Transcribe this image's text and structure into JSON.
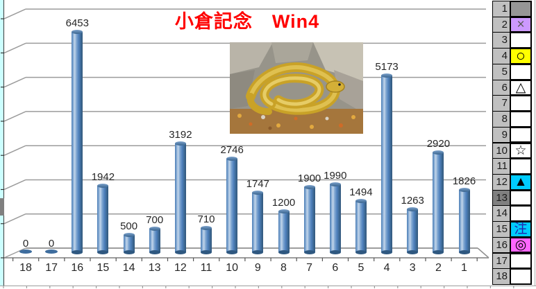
{
  "title": {
    "text": "小倉記念　Win4",
    "color": "#FF0000"
  },
  "chart_data": {
    "type": "bar",
    "subtype": "3d-cylinder",
    "title": "小倉記念　Win4",
    "categories": [
      "18",
      "17",
      "16",
      "15",
      "14",
      "13",
      "12",
      "11",
      "10",
      "9",
      "8",
      "7",
      "6",
      "5",
      "4",
      "3",
      "2",
      "1"
    ],
    "values": [
      0,
      0,
      6453,
      1942,
      500,
      700,
      3192,
      710,
      2746,
      1747,
      1200,
      1900,
      1990,
      1494,
      5173,
      1263,
      2920,
      1826
    ],
    "xlabel": "",
    "ylabel": "",
    "ylim": [
      0,
      7000
    ],
    "gridline_interval": 1000,
    "grid": true,
    "y_tick_labels_visible": false,
    "data_labels": true,
    "legend": "none",
    "bar_color": "#4F81BD"
  },
  "image": {
    "name": "golden-snake-photo",
    "alt": "golden snake coiled on rocks"
  },
  "sidebar": {
    "rows": [
      {
        "n": "1",
        "mark": "",
        "mark_bg": "#969696"
      },
      {
        "n": "2",
        "mark": "×",
        "mark_bg": "#CC99FF",
        "mark_color": "#595959"
      },
      {
        "n": "3",
        "mark": ""
      },
      {
        "n": "4",
        "mark": "○",
        "mark_bg": "#FFFF00"
      },
      {
        "n": "5",
        "mark": ""
      },
      {
        "n": "6",
        "mark": "△"
      },
      {
        "n": "7",
        "mark": ""
      },
      {
        "n": "8",
        "mark": ""
      },
      {
        "n": "9",
        "mark": ""
      },
      {
        "n": "10",
        "mark": "☆"
      },
      {
        "n": "11",
        "mark": ""
      },
      {
        "n": "12",
        "mark": "▲",
        "mark_bg": "#00CCFF"
      },
      {
        "n": "13",
        "mark": "",
        "num_bg": "#808080"
      },
      {
        "n": "14",
        "mark": ""
      },
      {
        "n": "15",
        "mark": "注",
        "mark_bg": "#00CCFF",
        "mark_color": "#2222AA"
      },
      {
        "n": "16",
        "mark": "◎",
        "mark_bg": "#FF66FF"
      },
      {
        "n": "17",
        "mark": ""
      },
      {
        "n": "18",
        "mark": ""
      }
    ]
  },
  "colors": {
    "sheet_strip": "#CCFFFF",
    "row_number_bg": "#C0C0C0",
    "gridline": "#9b9b9b",
    "bar": "#4F81BD"
  }
}
